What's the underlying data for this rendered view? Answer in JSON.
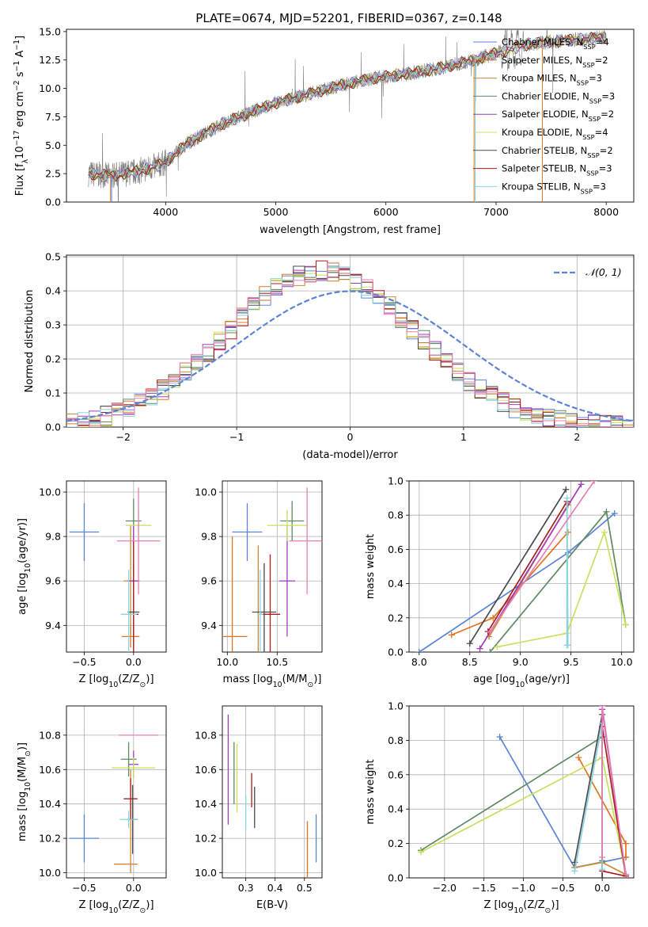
{
  "title": "PLATE=0674, MJD=52201, FIBERID=0367, z=0.148",
  "chart_data": [
    {
      "id": "spectrum",
      "type": "line",
      "xlabel": "wavelength [Angstrom, rest frame]",
      "ylabel": "Flux [f",
      "ylabel_sub": "λ",
      "ylabel_rest": "10",
      "ylabel_exp": "−17",
      "ylabel_tail": " erg cm",
      "ylabel_exp2": "−2",
      "ylabel_tail2": " s",
      "ylabel_exp3": "−1",
      "ylabel_tail3": " A",
      "ylabel_exp4": "−1",
      "ylabel_end": "]",
      "xlim": [
        3100,
        8250
      ],
      "ylim": [
        0,
        15.2
      ],
      "xticks": [
        4000,
        5000,
        6000,
        7000,
        8000
      ],
      "yticks": [
        0.0,
        2.5,
        5.0,
        7.5,
        10.0,
        12.5,
        15.0
      ],
      "legend_position": "upper-right",
      "data_anchor_points": {
        "x": [
          3300,
          3500,
          3700,
          3900,
          4000,
          4200,
          4500,
          4800,
          5000,
          5300,
          5600,
          5900,
          6200,
          6500,
          6800,
          7000,
          7300,
          7600,
          8000
        ],
        "y": [
          2.5,
          2.3,
          2.6,
          3.1,
          3.5,
          5.2,
          6.8,
          8.0,
          8.7,
          9.5,
          10.3,
          10.9,
          11.3,
          11.8,
          12.5,
          13.1,
          13.9,
          14.2,
          14.5
        ]
      },
      "series": [
        {
          "name": "Chabrier MILES",
          "nssp": "4",
          "color": "#5b84d6"
        },
        {
          "name": "Salpeter MILES",
          "nssp": "2",
          "color": "#e07520"
        },
        {
          "name": "Kroupa MILES",
          "nssp": "3",
          "color": "#c98a2e"
        },
        {
          "name": "Chabrier ELODIE",
          "nssp": "3",
          "color": "#5f8a64"
        },
        {
          "name": "Salpeter ELODIE",
          "nssp": "2",
          "color": "#a23bbf"
        },
        {
          "name": "Kroupa ELODIE",
          "nssp": "4",
          "color": "#c8e060"
        },
        {
          "name": "Chabrier STELIB",
          "nssp": "2",
          "color": "#4a4a4a"
        },
        {
          "name": "Salpeter STELIB",
          "nssp": "3",
          "color": "#a81e1e"
        },
        {
          "name": "Kroupa STELIB",
          "nssp": "3",
          "color": "#8cd4e0"
        }
      ]
    },
    {
      "id": "residuals",
      "type": "histogram",
      "xlabel": "(data-model)/error",
      "ylabel": "Normed distribution",
      "xlim": [
        -2.5,
        2.5
      ],
      "ylim": [
        0,
        0.505
      ],
      "xticks": [
        -2,
        -1,
        0,
        1,
        2
      ],
      "yticks": [
        0.0,
        0.1,
        0.2,
        0.3,
        0.4,
        0.5
      ],
      "legend_label": "𝒩(0, 1)",
      "legend_position": "upper-right",
      "bin_width": 0.1
    },
    {
      "id": "age-vs-Z",
      "type": "scatter",
      "xlabel": "Z [log",
      "xlabel_sub": "10",
      "xlabel_tail": "(Z/Z",
      "xlabel_sub2": "⊙",
      "xlabel_end": ")]",
      "ylabel": "age  [log",
      "ylabel_sub": "10",
      "ylabel_tail": "(age/yr)]",
      "xlim": [
        -0.68,
        0.33
      ],
      "ylim": [
        9.28,
        10.05
      ],
      "xticks": [
        -0.5,
        0.0
      ],
      "yticks": [
        9.4,
        9.6,
        9.8,
        10.0
      ],
      "points": [
        {
          "x": -0.5,
          "y": 9.82,
          "xerr": 0.15,
          "yerr": 0.13,
          "color": "#5b84d6"
        },
        {
          "x": -0.03,
          "y": 9.35,
          "xerr": 0.09,
          "yerr": 0.05,
          "color": "#e07520"
        },
        {
          "x": -0.03,
          "y": 9.6,
          "xerr": 0.07,
          "yerr": 0.25,
          "color": "#c98a2e"
        },
        {
          "x": 0.0,
          "y": 9.87,
          "xerr": 0.08,
          "yerr": 0.1,
          "color": "#5f8a64"
        },
        {
          "x": 0.0,
          "y": 9.6,
          "xerr": 0.06,
          "yerr": 0.25,
          "color": "#a23bbf"
        },
        {
          "x": 0.05,
          "y": 9.85,
          "xerr": 0.13,
          "yerr": 0.07,
          "color": "#c8e060"
        },
        {
          "x": 0.0,
          "y": 9.46,
          "xerr": 0.06,
          "yerr": 0.22,
          "color": "#4a4a4a"
        },
        {
          "x": 0.0,
          "y": 9.45,
          "xerr": 0.05,
          "yerr": 0.33,
          "color": "#a81e1e"
        },
        {
          "x": -0.05,
          "y": 9.45,
          "xerr": 0.08,
          "yerr": 0.2,
          "color": "#8cd4e0"
        },
        {
          "x": 0.05,
          "y": 9.78,
          "xerr": 0.22,
          "yerr": 0.24,
          "color": "#e87eb5"
        }
      ]
    },
    {
      "id": "age-vs-mass",
      "type": "scatter",
      "xlabel": "mass [log",
      "xlabel_sub": "10",
      "xlabel_tail": "(M/M",
      "xlabel_sub2": "⊙",
      "xlabel_end": ")]",
      "xlim": [
        9.95,
        10.95
      ],
      "ylim": [
        9.28,
        10.05
      ],
      "xticks": [
        10.0,
        10.5
      ],
      "yticks": [
        9.4,
        9.6,
        9.8,
        10.0
      ],
      "points": [
        {
          "x": 10.2,
          "y": 9.82,
          "xerr": 0.15,
          "yerr": 0.13,
          "color": "#5b84d6"
        },
        {
          "x": 10.05,
          "y": 9.35,
          "xerr": 0.15,
          "yerr": 0.45,
          "color": "#e07520"
        },
        {
          "x": 10.31,
          "y": 9.46,
          "xerr": 0.0,
          "yerr": 0.3,
          "color": "#c98a2e"
        },
        {
          "x": 10.65,
          "y": 9.87,
          "xerr": 0.12,
          "yerr": 0.09,
          "color": "#5f8a64"
        },
        {
          "x": 10.6,
          "y": 9.6,
          "xerr": 0.08,
          "yerr": 0.25,
          "color": "#a23bbf"
        },
        {
          "x": 10.6,
          "y": 9.85,
          "xerr": 0.2,
          "yerr": 0.07,
          "color": "#c8e060"
        },
        {
          "x": 10.37,
          "y": 9.46,
          "xerr": 0.12,
          "yerr": 0.22,
          "color": "#4a4a4a"
        },
        {
          "x": 10.43,
          "y": 9.45,
          "xerr": 0.1,
          "yerr": 0.27,
          "color": "#a81e1e"
        },
        {
          "x": 10.33,
          "y": 9.45,
          "xerr": 0.03,
          "yerr": 0.2,
          "color": "#8cd4e0"
        },
        {
          "x": 10.8,
          "y": 9.78,
          "xerr": 0.18,
          "yerr": 0.24,
          "color": "#e87eb5"
        }
      ]
    },
    {
      "id": "mass-weight-vs-age",
      "type": "line",
      "xlabel": "age  [log",
      "xlabel_sub": "10",
      "xlabel_tail": "(age/yr)]",
      "ylabel": "mass weight",
      "xlim": [
        7.9,
        10.12
      ],
      "ylim": [
        0,
        1
      ],
      "xticks": [
        8.0,
        8.5,
        9.0,
        9.5,
        10.0
      ],
      "yticks": [
        0.0,
        0.2,
        0.4,
        0.6,
        0.8,
        1.0
      ],
      "series": [
        {
          "color": "#5b84d6",
          "x": [
            8.0,
            9.47,
            9.93
          ],
          "y": [
            0.0,
            0.58,
            0.81
          ]
        },
        {
          "color": "#e07520",
          "x": [
            8.32,
            8.73,
            9.47
          ],
          "y": [
            0.1,
            0.2,
            0.7
          ]
        },
        {
          "color": "#c98a2e",
          "x": [
            8.69,
            9.47
          ],
          "y": [
            0.09,
            0.86
          ]
        },
        {
          "color": "#5f8a64",
          "x": [
            8.7,
            9.85,
            10.04
          ],
          "y": [
            0.0,
            0.82,
            0.16
          ]
        },
        {
          "color": "#a23bbf",
          "x": [
            8.6,
            9.6
          ],
          "y": [
            0.02,
            0.98
          ]
        },
        {
          "color": "#c8e060",
          "x": [
            8.77,
            9.46,
            9.83,
            10.04
          ],
          "y": [
            0.03,
            0.11,
            0.7,
            0.16
          ]
        },
        {
          "color": "#4a4a4a",
          "x": [
            8.5,
            9.45
          ],
          "y": [
            0.05,
            0.95
          ]
        },
        {
          "color": "#a81e1e",
          "x": [
            8.68,
            9.46
          ],
          "y": [
            0.12,
            0.88
          ]
        },
        {
          "color": "#8cd4e0",
          "x": [
            9.46,
            9.46,
            9.47
          ],
          "y": [
            0.04,
            0.9,
            0.04
          ]
        },
        {
          "color": "#e87eb5",
          "x": [
            8.7,
            9.73
          ],
          "y": [
            0.12,
            1.0
          ]
        }
      ]
    },
    {
      "id": "mass-vs-Z",
      "type": "scatter",
      "xlabel": "Z [log",
      "xlabel_sub": "10",
      "xlabel_tail": "(Z/Z",
      "xlabel_sub2": "⊙",
      "xlabel_end": ")]",
      "ylabel": "mass [log",
      "ylabel_sub": "10",
      "ylabel_tail": "(M/M",
      "ylabel_sub2": "⊙",
      "ylabel_end": ")]",
      "xlim": [
        -0.68,
        0.33
      ],
      "ylim": [
        9.97,
        10.97
      ],
      "xticks": [
        -0.5,
        0.0
      ],
      "yticks": [
        10.0,
        10.2,
        10.4,
        10.6,
        10.8
      ],
      "points": [
        {
          "x": -0.5,
          "y": 10.2,
          "xerr": 0.15,
          "yerr": 0.14,
          "color": "#5b84d6"
        },
        {
          "x": -0.08,
          "y": 10.05,
          "xerr": 0.12,
          "yerr": 0.0,
          "color": "#e07520"
        },
        {
          "x": -0.03,
          "y": 10.3,
          "xerr": 0.0,
          "yerr": 0.3,
          "color": "#c98a2e"
        },
        {
          "x": -0.05,
          "y": 10.66,
          "xerr": 0.08,
          "yerr": 0.1,
          "color": "#5f8a64"
        },
        {
          "x": 0.0,
          "y": 10.63,
          "xerr": 0.05,
          "yerr": 0.08,
          "color": "#a23bbf"
        },
        {
          "x": 0.0,
          "y": 10.61,
          "xerr": 0.22,
          "yerr": 0.06,
          "color": "#c8e060"
        },
        {
          "x": -0.01,
          "y": 10.31,
          "xerr": 0.05,
          "yerr": 0.2,
          "color": "#4a4a4a"
        },
        {
          "x": -0.03,
          "y": 10.43,
          "xerr": 0.07,
          "yerr": 0.12,
          "color": "#a81e1e"
        },
        {
          "x": -0.05,
          "y": 10.31,
          "xerr": 0.09,
          "yerr": 0.05,
          "color": "#8cd4e0"
        },
        {
          "x": 0.05,
          "y": 10.8,
          "xerr": 0.2,
          "yerr": 0.0,
          "color": "#e87eb5"
        }
      ]
    },
    {
      "id": "mass-vs-EBV",
      "type": "scatter",
      "xlabel": "E(B-V)",
      "xlim": [
        0.22,
        0.56
      ],
      "ylim": [
        9.97,
        10.97
      ],
      "xticks": [
        0.3,
        0.4,
        0.5
      ],
      "yticks": [
        10.0,
        10.2,
        10.4,
        10.6,
        10.8
      ],
      "points": [
        {
          "x": 0.54,
          "y": 10.2,
          "xerr": 0.0,
          "yerr": 0.14,
          "color": "#5b84d6"
        },
        {
          "x": 0.51,
          "y": 10.05,
          "xerr": 0.0,
          "yerr": 0.25,
          "color": "#e07520"
        },
        {
          "x": 0.24,
          "y": 10.6,
          "xerr": 0.0,
          "yerr": 0.32,
          "color": "#a23bbf"
        },
        {
          "x": 0.26,
          "y": 10.58,
          "xerr": 0.0,
          "yerr": 0.18,
          "color": "#5f8a64"
        },
        {
          "x": 0.27,
          "y": 10.55,
          "xerr": 0.0,
          "yerr": 0.2,
          "color": "#c8e060"
        },
        {
          "x": 0.33,
          "y": 10.38,
          "xerr": 0.0,
          "yerr": 0.12,
          "color": "#4a4a4a"
        },
        {
          "x": 0.32,
          "y": 10.48,
          "xerr": 0.0,
          "yerr": 0.1,
          "color": "#a81e1e"
        },
        {
          "x": 0.3,
          "y": 10.35,
          "xerr": 0.0,
          "yerr": 0.1,
          "color": "#8cd4e0"
        }
      ]
    },
    {
      "id": "mass-weight-vs-Z",
      "type": "line",
      "xlabel": "Z [log",
      "xlabel_sub": "10",
      "xlabel_tail": "(Z/Z",
      "xlabel_sub2": "⊙",
      "xlabel_end": ")]",
      "ylabel": "mass weight",
      "xlim": [
        -2.45,
        0.4
      ],
      "ylim": [
        0,
        1
      ],
      "xticks": [
        -2.0,
        -1.5,
        -1.0,
        -0.5,
        0.0
      ],
      "yticks": [
        0.0,
        0.2,
        0.4,
        0.6,
        0.8,
        1.0
      ],
      "series": [
        {
          "color": "#5b84d6",
          "x": [
            -1.3,
            -0.35,
            0.3
          ],
          "y": [
            0.82,
            0.06,
            0.12
          ]
        },
        {
          "color": "#e07520",
          "x": [
            -0.3,
            0.3,
            0.3
          ],
          "y": [
            0.7,
            0.2,
            0.12
          ]
        },
        {
          "color": "#c98a2e",
          "x": [
            -0.35,
            0.0,
            0.3
          ],
          "y": [
            0.06,
            0.09,
            0.02
          ]
        },
        {
          "color": "#5f8a64",
          "x": [
            -2.3,
            0.0,
            0.0
          ],
          "y": [
            0.16,
            0.82,
            0.1
          ]
        },
        {
          "color": "#a23bbf",
          "x": [
            0.0,
            0.0,
            0.3
          ],
          "y": [
            0.0,
            0.98,
            0.02
          ]
        },
        {
          "color": "#c8e060",
          "x": [
            -2.3,
            0.0,
            0.3
          ],
          "y": [
            0.15,
            0.7,
            0.02
          ]
        },
        {
          "color": "#4a4a4a",
          "x": [
            -0.35,
            0.0,
            0.0
          ],
          "y": [
            0.09,
            0.95,
            0.0
          ]
        },
        {
          "color": "#a81e1e",
          "x": [
            0.0,
            0.3,
            0.0
          ],
          "y": [
            0.88,
            0.01,
            0.04
          ]
        },
        {
          "color": "#8cd4e0",
          "x": [
            -0.35,
            0.0,
            0.0
          ],
          "y": [
            0.04,
            0.9,
            0.05
          ]
        },
        {
          "color": "#e87eb5",
          "x": [
            0.0,
            0.0,
            0.3
          ],
          "y": [
            0.12,
            1.0,
            0.02
          ]
        }
      ]
    }
  ]
}
